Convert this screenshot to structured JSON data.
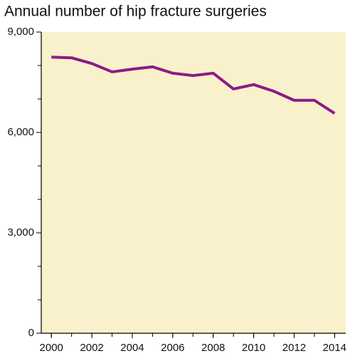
{
  "chart_data": {
    "type": "line",
    "title": "Annual number of hip fracture surgeries",
    "x": [
      2000,
      2001,
      2002,
      2003,
      2004,
      2005,
      2006,
      2007,
      2008,
      2009,
      2010,
      2011,
      2012,
      2013,
      2014
    ],
    "series": [
      {
        "name": "Hip fracture surgeries",
        "color": "#8a1b88",
        "values": [
          8250,
          8230,
          8060,
          7810,
          7890,
          7960,
          7770,
          7700,
          7770,
          7300,
          7430,
          7230,
          6960,
          6960,
          6570
        ]
      }
    ],
    "xlim": [
      1999.5,
      2014.55
    ],
    "xticks": [
      2000,
      2002,
      2004,
      2006,
      2008,
      2010,
      2012,
      2014
    ],
    "ylim": [
      0,
      9000
    ],
    "yticks": [
      0,
      {
        "value": 3000,
        "label": "3,000"
      },
      {
        "value": 6000,
        "label": "6,000"
      },
      {
        "value": 9000,
        "label": "9,000"
      }
    ],
    "minor_yticks": [
      1000,
      2000,
      4000,
      5000,
      7000,
      8000
    ],
    "background": "#f9f1cb"
  }
}
